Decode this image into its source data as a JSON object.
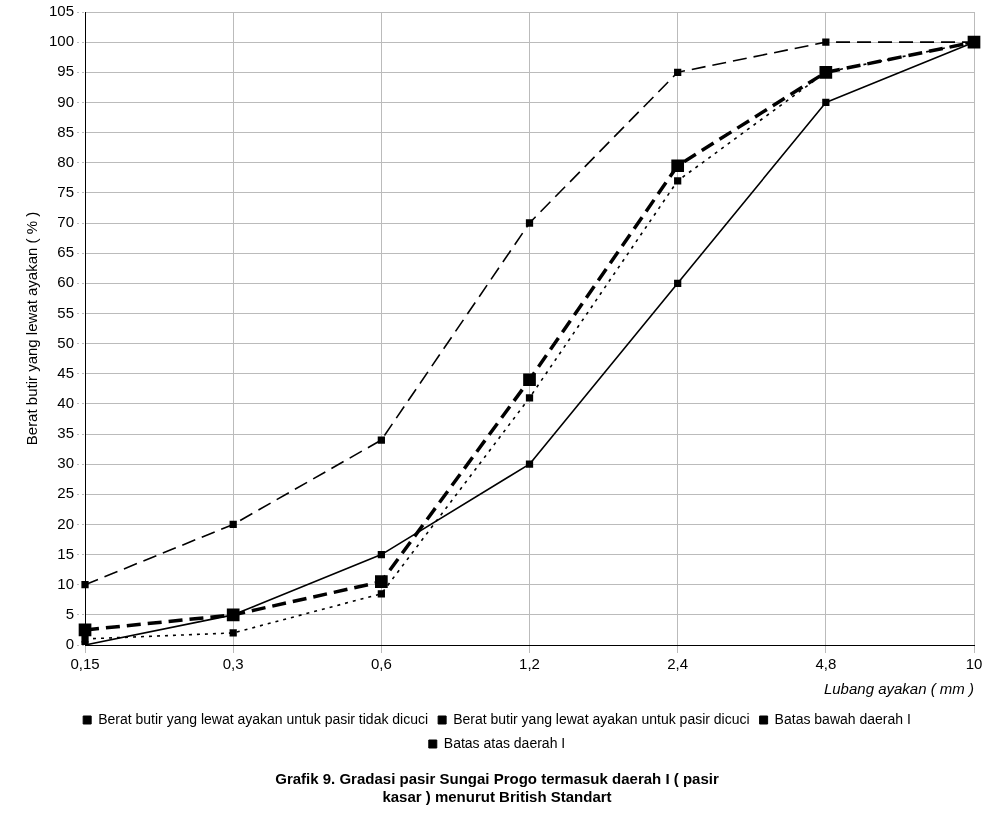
{
  "chart_data": {
    "type": "line",
    "title": "Grafik 9. Gradasi pasir Sungai Progo termasuk daerah I ( pasir kasar ) menurut British Standart",
    "xlabel": "Lubang ayakan ( mm )",
    "ylabel": "Berat butir yang lewat ayakan ( % )",
    "categories": [
      "0,15",
      "0,3",
      "0,6",
      "1,2",
      "2,4",
      "4,8",
      "10"
    ],
    "series": [
      {
        "name": "Berat butir yang lewat ayakan untuk pasir tidak dicuci",
        "color": "#000000",
        "line_style": "dashed",
        "values": [
          2.5,
          5,
          10.5,
          44,
          79.5,
          95,
          100
        ]
      },
      {
        "name": "Berat butir yang lewat ayakan untuk pasir dicuci",
        "color": "#000000",
        "line_style": "dotted",
        "values": [
          1,
          2,
          8.5,
          41,
          77,
          95,
          100
        ]
      },
      {
        "name": "Batas bawah daerah I",
        "color": "#000000",
        "line_style": "solid",
        "values": [
          0,
          5,
          15,
          30,
          60,
          90,
          100
        ]
      },
      {
        "name": "Batas atas daerah I",
        "color": "#000000",
        "line_style": "dashed",
        "values": [
          10,
          20,
          34,
          70,
          95,
          100,
          100
        ]
      }
    ],
    "ylim": [
      0,
      105
    ],
    "yticks": [
      0,
      5,
      10,
      15,
      20,
      25,
      30,
      35,
      40,
      45,
      50,
      55,
      60,
      65,
      70,
      75,
      80,
      85,
      90,
      95,
      100,
      105
    ],
    "grid": true,
    "legend": "bottom",
    "marker": "square"
  }
}
